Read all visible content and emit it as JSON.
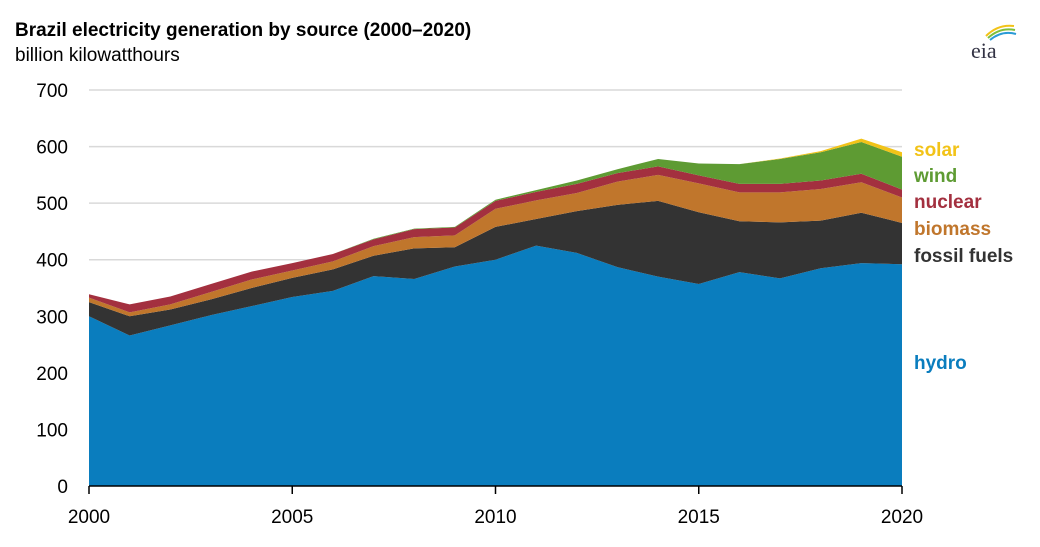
{
  "logo_text": "eia",
  "chart_data": {
    "type": "area",
    "stacked": true,
    "title": "Brazil electricity generation by source (2000–2020)",
    "ylabel": "billion kilowatthours",
    "xlabel": "",
    "xlim": [
      2000,
      2020
    ],
    "ylim": [
      0,
      700
    ],
    "x_ticks": [
      "2000",
      "2005",
      "2010",
      "2015",
      "2020"
    ],
    "y_ticks": [
      "0",
      "100",
      "200",
      "300",
      "400",
      "500",
      "600",
      "700"
    ],
    "grid": "horizontal",
    "legend": "inline-right",
    "x": [
      2000,
      2001,
      2002,
      2003,
      2004,
      2005,
      2006,
      2007,
      2008,
      2009,
      2010,
      2011,
      2012,
      2013,
      2014,
      2015,
      2016,
      2017,
      2018,
      2019,
      2020
    ],
    "series": [
      {
        "name": "hydro",
        "color": "#0a7dbe",
        "values": [
          300,
          266,
          284,
          302,
          318,
          334,
          345,
          371,
          366,
          388,
          400,
          425,
          412,
          387,
          370,
          357,
          378,
          367,
          385,
          394,
          392
        ]
      },
      {
        "name": "fossil fuels",
        "color": "#333333",
        "values": [
          25,
          34,
          28,
          28,
          32,
          34,
          38,
          36,
          54,
          34,
          58,
          47,
          74,
          110,
          134,
          127,
          90,
          99,
          84,
          89,
          73
        ]
      },
      {
        "name": "biomass",
        "color": "#c0762c",
        "values": [
          8,
          7,
          9,
          13,
          15,
          13,
          14,
          17,
          20,
          21,
          32,
          33,
          32,
          41,
          46,
          51,
          51,
          53,
          56,
          54,
          45
        ]
      },
      {
        "name": "nuclear",
        "color": "#a3303f",
        "values": [
          6,
          14,
          14,
          14,
          14,
          13,
          13,
          12,
          14,
          14,
          14,
          15,
          16,
          15,
          15,
          14,
          15,
          15,
          15,
          15,
          14
        ]
      },
      {
        "name": "wind",
        "color": "#5e9b33",
        "values": [
          0,
          0,
          0,
          0,
          0,
          0,
          0,
          1,
          1,
          1,
          2,
          3,
          6,
          7,
          13,
          21,
          35,
          44,
          50,
          56,
          58
        ]
      },
      {
        "name": "solar",
        "color": "#f2c318",
        "values": [
          0,
          0,
          0,
          0,
          0,
          0,
          0,
          0,
          0,
          0,
          0,
          0,
          0,
          0,
          0,
          0,
          0,
          1,
          2,
          6,
          8
        ]
      }
    ]
  }
}
